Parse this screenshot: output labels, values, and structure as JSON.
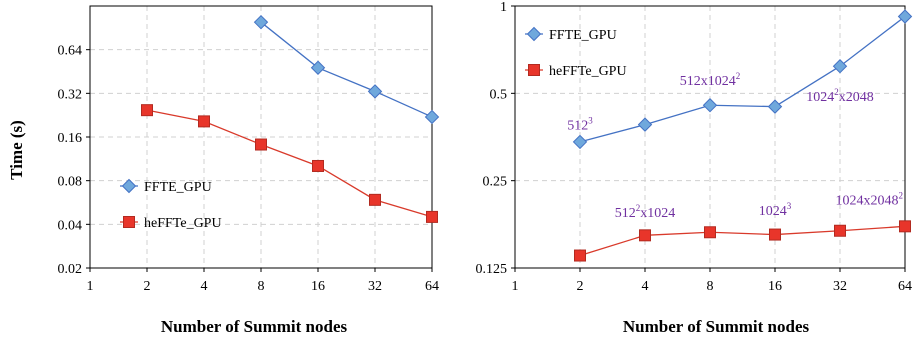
{
  "colors": {
    "ffte": "#4472c4",
    "ffte_marker": "#6fa8dc",
    "heffte": "#d93a2b",
    "heffte_marker": "#e8352a",
    "annotation": "#7030a0",
    "grid": "#d0d0d0"
  },
  "shared_ylabel": "Time (s)",
  "chart_data": [
    {
      "type": "line",
      "log_x": true,
      "log_y": true,
      "xlabel": "Number of Summit nodes",
      "x": [
        1,
        2,
        4,
        8,
        16,
        32,
        64
      ],
      "x_tick_labels": [
        "1",
        "2",
        "4",
        "8",
        "16",
        "32",
        "64"
      ],
      "y_ticks": [
        0.02,
        0.04,
        0.08,
        0.16,
        0.32,
        0.64
      ],
      "y_tick_labels": [
        "0.02",
        "0.04",
        "0.08",
        "0.16",
        "0.32",
        "0.64"
      ],
      "ylim": [
        0.02,
        1.28
      ],
      "grid": true,
      "legend_position": "middle-left",
      "series": [
        {
          "name": "FFTE_GPU",
          "x": [
            8,
            16,
            32,
            64
          ],
          "values": [
            0.99,
            0.48,
            0.33,
            0.22
          ],
          "marker": "diamond"
        },
        {
          "name": "heFFTe_GPU",
          "x": [
            2,
            4,
            8,
            16,
            32,
            64
          ],
          "values": [
            0.245,
            0.205,
            0.142,
            0.101,
            0.059,
            0.045
          ],
          "marker": "square"
        }
      ]
    },
    {
      "type": "line",
      "log_x": true,
      "log_y": true,
      "xlabel": "Number of Summit nodes",
      "x": [
        1,
        2,
        4,
        8,
        16,
        32,
        64
      ],
      "x_tick_labels": [
        "1",
        "2",
        "4",
        "8",
        "16",
        "32",
        "64"
      ],
      "y_ticks": [
        0.125,
        0.25,
        0.5,
        1
      ],
      "y_tick_labels": [
        "0.125",
        "0.25",
        "0.5",
        "1"
      ],
      "ylim": [
        0.125,
        1
      ],
      "grid": true,
      "legend_position": "top-left",
      "series": [
        {
          "name": "FFTE_GPU",
          "x": [
            2,
            4,
            8,
            16,
            32,
            64
          ],
          "values": [
            0.34,
            0.39,
            0.455,
            0.45,
            0.62,
            0.92
          ],
          "marker": "diamond"
        },
        {
          "name": "heFFTe_GPU",
          "x": [
            2,
            4,
            8,
            16,
            32,
            64
          ],
          "values": [
            0.138,
            0.162,
            0.166,
            0.163,
            0.168,
            0.174
          ],
          "marker": "square"
        }
      ],
      "annotations": [
        {
          "base": "512",
          "sup": "3",
          "rest": "",
          "x": 2,
          "y": 0.375
        },
        {
          "base": "512x1024",
          "sup": "2",
          "rest": "",
          "x": 8,
          "y": 0.535
        },
        {
          "base": "1024",
          "sup": "2",
          "rest": "x2048",
          "x": 32,
          "y": 0.47
        },
        {
          "base": "512",
          "sup": "2",
          "rest": "x1024",
          "x": 4,
          "y": 0.187
        },
        {
          "base": "1024",
          "sup": "3",
          "rest": "",
          "x": 16,
          "y": 0.19
        },
        {
          "base": "1024x2048",
          "sup": "2",
          "rest": "",
          "x": 64,
          "y": 0.207
        }
      ]
    }
  ]
}
